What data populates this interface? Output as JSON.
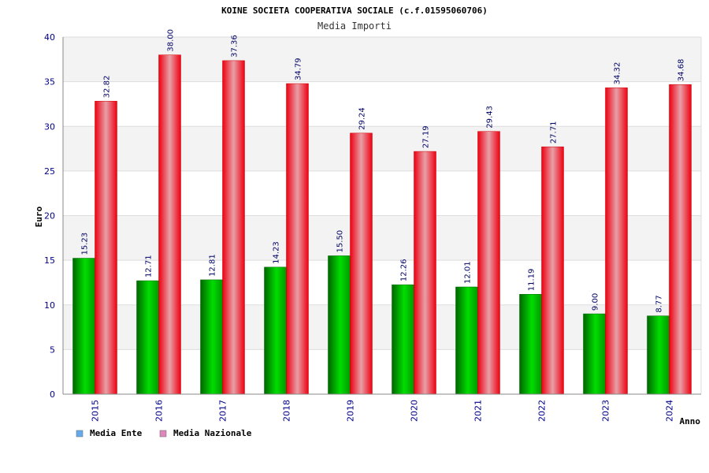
{
  "chart_data": {
    "type": "bar",
    "title": "KOINE SOCIETA COOPERATIVA SOCIALE (c.f.01595060706)",
    "subtitle": "Media Importi",
    "xlabel": "Anno",
    "ylabel": "Euro",
    "categories": [
      "2015",
      "2016",
      "2017",
      "2018",
      "2019",
      "2020",
      "2021",
      "2022",
      "2023",
      "2024"
    ],
    "ylim": [
      0,
      40
    ],
    "yticks": [
      "0",
      "5",
      "10",
      "15",
      "20",
      "25",
      "30",
      "35",
      "40"
    ],
    "grid": true,
    "legend_position": "bottom-left",
    "series": [
      {
        "name": "Media Ente",
        "color": "#00cc00",
        "legend_color": "#66aaee",
        "values": [
          15.23,
          12.71,
          12.81,
          14.23,
          15.5,
          12.26,
          12.01,
          11.19,
          9.0,
          8.77
        ],
        "labels": [
          "15.23",
          "12.71",
          "12.81",
          "14.23",
          "15.50",
          "12.26",
          "12.01",
          "11.19",
          "9.00",
          "8.77"
        ]
      },
      {
        "name": "Media Nazionale",
        "color": "#ee1122",
        "legend_color": "#dd88bb",
        "values": [
          32.82,
          38.0,
          37.36,
          34.79,
          29.24,
          27.19,
          29.43,
          27.71,
          34.32,
          34.68
        ],
        "labels": [
          "32.82",
          "38.00",
          "37.36",
          "34.79",
          "29.24",
          "27.19",
          "29.43",
          "27.71",
          "34.32",
          "34.68"
        ]
      }
    ]
  }
}
